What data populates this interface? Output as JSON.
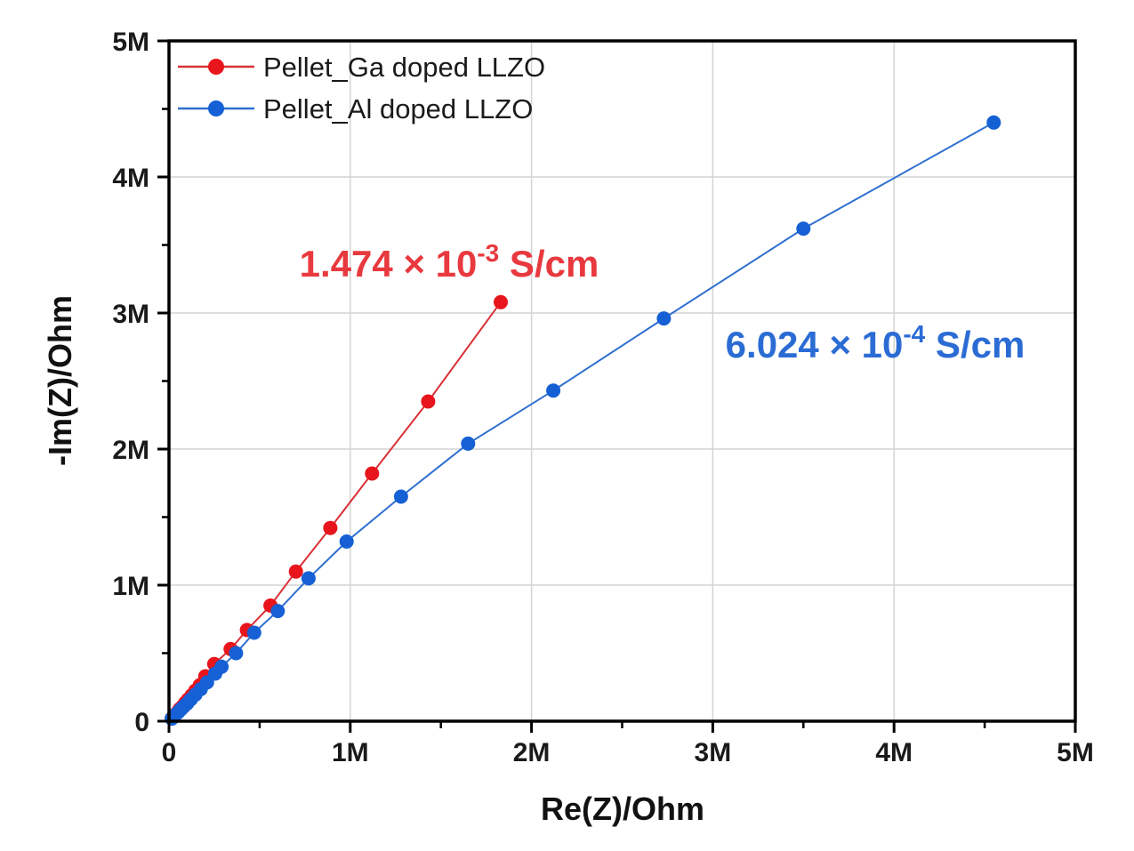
{
  "figure": {
    "background": "#ffffff",
    "frame_color": "#000000",
    "grid_color": "#d4d4d4"
  },
  "legend": {
    "items": [
      {
        "label": "Pellet_Ga doped LLZO",
        "marker_color": "#e8151c",
        "line_color": "#d93036"
      },
      {
        "label": "Pellet_Al doped LLZO",
        "marker_color": "#1560d4",
        "line_color": "#2f6fd0"
      }
    ]
  },
  "annotations": [
    {
      "prefix": "1.474 × 10",
      "exponent": "-3",
      "suffix": " S/cm",
      "color": "#e8393e"
    },
    {
      "prefix": "6.024 × 10",
      "exponent": "-4",
      "suffix": " S/cm",
      "color": "#2b6cd4"
    }
  ],
  "chart_data": {
    "type": "scatter",
    "title": "",
    "xlabel": "Re(Z)/Ohm",
    "ylabel": "-Im(Z)/Ohm",
    "xlim": [
      0,
      5000000
    ],
    "ylim": [
      0,
      5000000
    ],
    "grid": true,
    "legend_position": "top-left",
    "x_ticks": [
      {
        "value": 0,
        "label": "0"
      },
      {
        "value": 1000000,
        "label": "1M"
      },
      {
        "value": 2000000,
        "label": "2M"
      },
      {
        "value": 3000000,
        "label": "3M"
      },
      {
        "value": 4000000,
        "label": "4M"
      },
      {
        "value": 5000000,
        "label": "5M"
      }
    ],
    "y_ticks": [
      {
        "value": 0,
        "label": "0"
      },
      {
        "value": 1000000,
        "label": "1M"
      },
      {
        "value": 2000000,
        "label": "2M"
      },
      {
        "value": 3000000,
        "label": "3M"
      },
      {
        "value": 4000000,
        "label": "4M"
      },
      {
        "value": 5000000,
        "label": "5M"
      }
    ],
    "minor_tick_interval": 500000,
    "series": [
      {
        "name": "Pellet_Ga doped LLZO",
        "marker_color": "#e8151c",
        "line_color": "#d93036",
        "conductivity_label": "1.474 × 10^-3 S/cm",
        "points_ohm": [
          [
            15000,
            20000
          ],
          [
            25000,
            35000
          ],
          [
            35000,
            50000
          ],
          [
            50000,
            70000
          ],
          [
            60000,
            90000
          ],
          [
            75000,
            110000
          ],
          [
            90000,
            135000
          ],
          [
            105000,
            160000
          ],
          [
            125000,
            190000
          ],
          [
            145000,
            225000
          ],
          [
            170000,
            265000
          ],
          [
            200000,
            330000
          ],
          [
            250000,
            420000
          ],
          [
            340000,
            530000
          ],
          [
            430000,
            670000
          ],
          [
            560000,
            850000
          ],
          [
            700000,
            1100000
          ],
          [
            890000,
            1420000
          ],
          [
            1120000,
            1820000
          ],
          [
            1430000,
            2350000
          ],
          [
            1830000,
            3080000
          ]
        ]
      },
      {
        "name": "Pellet_Al doped LLZO",
        "marker_color": "#1560d4",
        "line_color": "#2f6fd0",
        "conductivity_label": "6.024 × 10^-4 S/cm",
        "points_ohm": [
          [
            15000,
            18000
          ],
          [
            25000,
            32000
          ],
          [
            35000,
            45000
          ],
          [
            50000,
            65000
          ],
          [
            65000,
            85000
          ],
          [
            80000,
            105000
          ],
          [
            100000,
            130000
          ],
          [
            120000,
            160000
          ],
          [
            145000,
            195000
          ],
          [
            175000,
            235000
          ],
          [
            210000,
            285000
          ],
          [
            255000,
            350000
          ],
          [
            290000,
            400000
          ],
          [
            370000,
            500000
          ],
          [
            470000,
            650000
          ],
          [
            600000,
            810000
          ],
          [
            770000,
            1050000
          ],
          [
            980000,
            1320000
          ],
          [
            1280000,
            1650000
          ],
          [
            1650000,
            2040000
          ],
          [
            2120000,
            2430000
          ],
          [
            2730000,
            2960000
          ],
          [
            3500000,
            3620000
          ],
          [
            4550000,
            4400000
          ]
        ]
      }
    ]
  }
}
